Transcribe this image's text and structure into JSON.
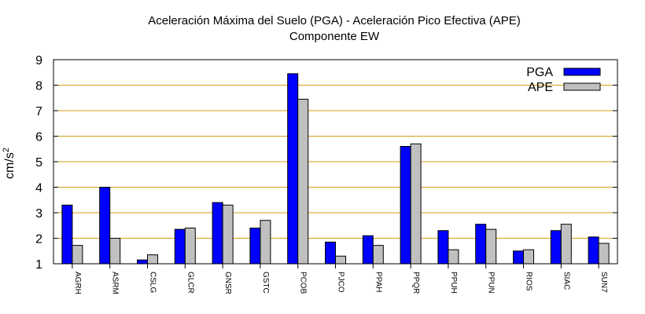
{
  "chart_data": {
    "type": "bar",
    "title": "Aceleración Máxima del Suelo (PGA) -  Aceleración Pico Efectiva (APE)",
    "subtitle": "Componente EW",
    "ylabel_base": "cm/s",
    "ylabel_exp": "2",
    "ylim": [
      1,
      9
    ],
    "yticks": [
      1,
      2,
      3,
      4,
      5,
      6,
      7,
      8,
      9
    ],
    "grid": true,
    "legend_position": "top-right",
    "categories": [
      "AGRH",
      "ASRM",
      "CSLG",
      "GLCR",
      "GNSR",
      "GSTC",
      "PCOB",
      "PJCO",
      "PPAH",
      "PPQR",
      "PPUH",
      "PPUN",
      "RIOS",
      "SIAC",
      "SUN7"
    ],
    "series": [
      {
        "name": "PGA",
        "color": "#0000ff",
        "values": [
          3.3,
          4.0,
          1.15,
          2.35,
          3.4,
          2.4,
          8.45,
          1.85,
          2.1,
          5.6,
          2.3,
          2.55,
          1.5,
          2.3,
          2.05
        ]
      },
      {
        "name": "APE",
        "color": "#c0c0c0",
        "values": [
          1.72,
          2.0,
          1.35,
          2.4,
          3.3,
          2.7,
          7.45,
          1.3,
          1.72,
          5.7,
          1.55,
          2.35,
          1.55,
          2.55,
          1.8
        ]
      }
    ],
    "gridline_color": "#d4a017"
  }
}
